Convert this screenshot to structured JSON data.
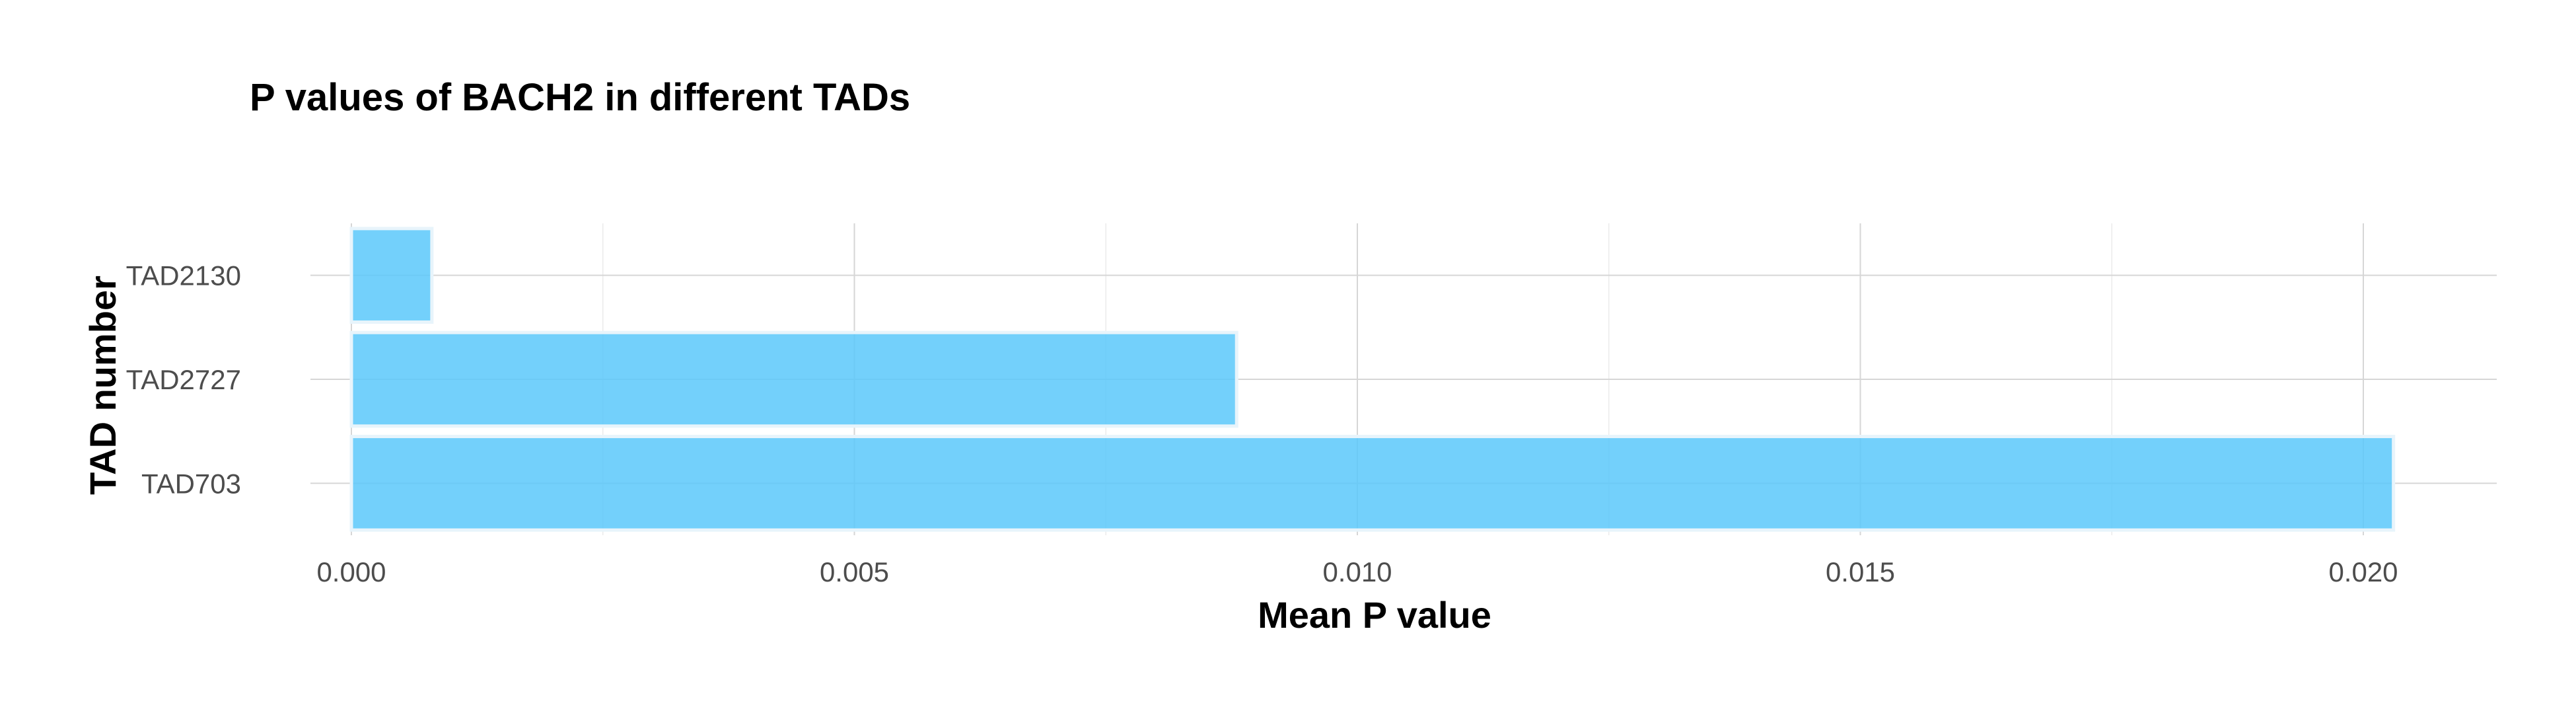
{
  "chart_data": {
    "type": "bar",
    "orientation": "horizontal",
    "title": "P values of BACH2 in different TADs",
    "xlabel": "Mean P value",
    "ylabel": "TAD number",
    "categories": [
      "TAD2130",
      "TAD2727",
      "TAD703"
    ],
    "values": [
      0.0008,
      0.0088,
      0.0203
    ],
    "xlim": [
      0,
      0.0213
    ],
    "x_ticks": [
      0.0,
      0.005,
      0.01,
      0.015,
      0.02
    ],
    "x_tick_labels": [
      "0.000",
      "0.005",
      "0.010",
      "0.015",
      "0.020"
    ],
    "bar_color": "#5bc8fa",
    "grid": true,
    "legend": "none"
  }
}
